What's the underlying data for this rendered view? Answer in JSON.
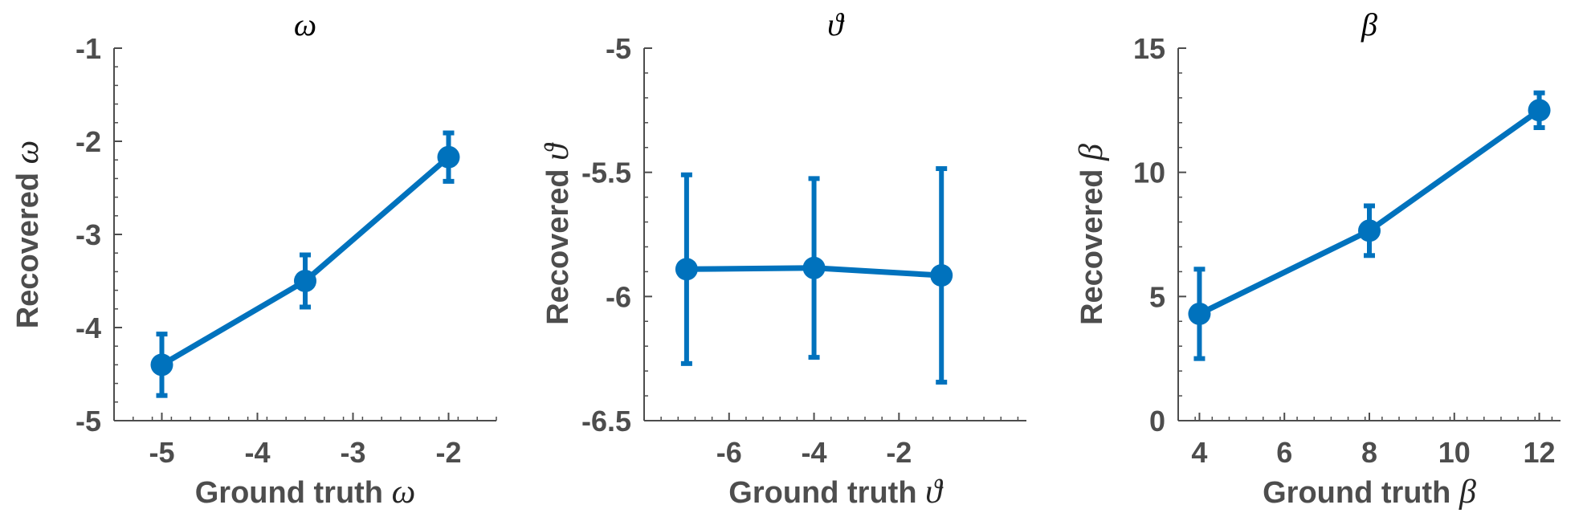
{
  "colors": {
    "series": "#0072bd",
    "axis": "#4d4d4d"
  },
  "chart_data": [
    {
      "type": "line",
      "title": "ω",
      "xlabel": "Ground truth",
      "xlabel_symbol": "ω",
      "ylabel": "Recovered",
      "ylabel_symbol": "ω",
      "xlim": [
        -5.5,
        -1.5
      ],
      "ylim": [
        -5,
        -1
      ],
      "xticks": [
        -5,
        -4,
        -3,
        -2
      ],
      "xtick_labels": [
        "-5",
        "-4",
        "-3",
        "-2"
      ],
      "yticks": [
        -5,
        -4,
        -3,
        -2,
        -1
      ],
      "ytick_labels": [
        "-5",
        "-4",
        "-3",
        "-2",
        "-1"
      ],
      "x": [
        -5,
        -3.5,
        -2
      ],
      "y": [
        -4.4,
        -3.5,
        -2.17
      ],
      "err_low": [
        0.33,
        0.28,
        0.26
      ],
      "err_high": [
        0.33,
        0.28,
        0.26
      ],
      "grid": false
    },
    {
      "type": "line",
      "title": "ϑ",
      "xlabel": "Ground truth",
      "xlabel_symbol": "ϑ",
      "ylabel": "Recovered",
      "ylabel_symbol": "ϑ",
      "xlim": [
        -8,
        1
      ],
      "ylim": [
        -6.5,
        -5
      ],
      "xticks": [
        -6,
        -4,
        -2
      ],
      "xtick_labels": [
        "-6",
        "-4",
        "-2"
      ],
      "yticks": [
        -6.5,
        -6,
        -5.5,
        -5
      ],
      "ytick_labels": [
        "-6.5",
        "-6",
        "-5.5",
        "-5"
      ],
      "x": [
        -7,
        -4,
        -1
      ],
      "y": [
        -5.89,
        -5.885,
        -5.915
      ],
      "err_low": [
        0.38,
        0.36,
        0.43
      ],
      "err_high": [
        0.38,
        0.36,
        0.43
      ],
      "grid": false
    },
    {
      "type": "line",
      "title": "β",
      "xlabel": "Ground truth",
      "xlabel_symbol": "β",
      "ylabel": "Recovered",
      "ylabel_symbol": "β",
      "xlim": [
        3.5,
        12.5
      ],
      "ylim": [
        0,
        15
      ],
      "xticks": [
        4,
        6,
        8,
        10,
        12
      ],
      "xtick_labels": [
        "4",
        "6",
        "8",
        "10",
        "12"
      ],
      "yticks": [
        0,
        5,
        10,
        15
      ],
      "ytick_labels": [
        "0",
        "5",
        "10",
        "15"
      ],
      "x": [
        4,
        8,
        12
      ],
      "y": [
        4.3,
        7.65,
        12.5
      ],
      "err_low": [
        1.8,
        1.0,
        0.7
      ],
      "err_high": [
        1.8,
        1.0,
        0.7
      ],
      "grid": false
    }
  ]
}
